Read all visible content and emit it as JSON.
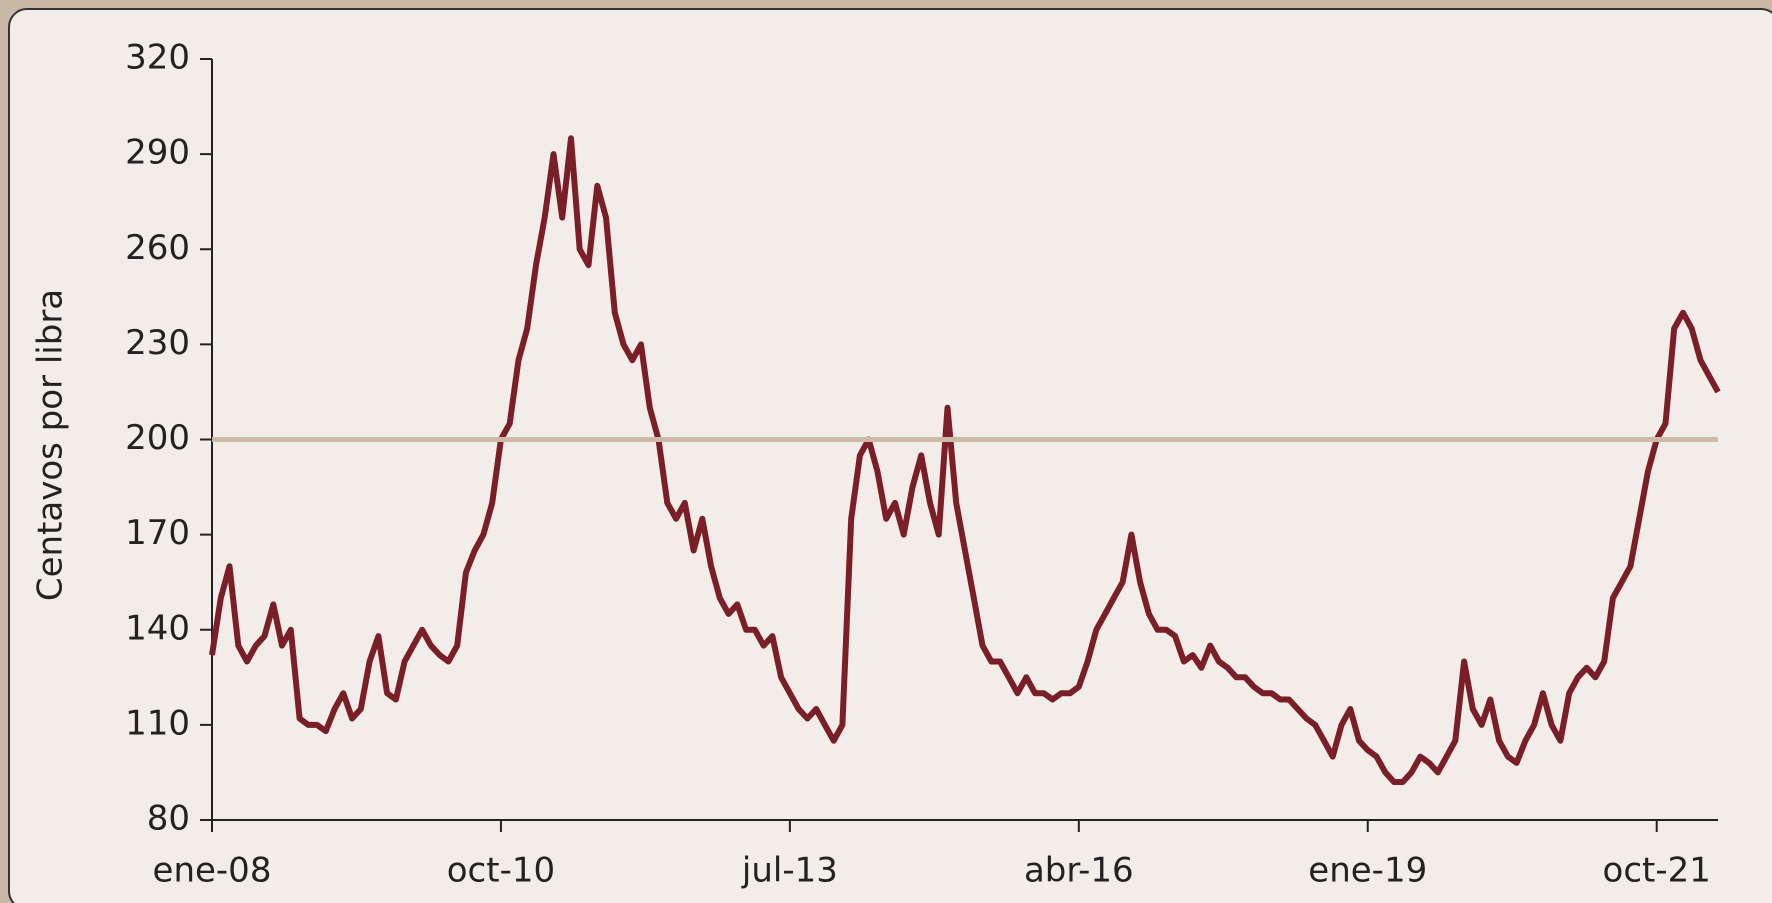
{
  "chart_data": {
    "type": "line",
    "y_label": "Centavos por libra",
    "x": [
      "2008-01",
      "2008-02",
      "2008-03",
      "2008-04",
      "2008-05",
      "2008-06",
      "2008-07",
      "2008-08",
      "2008-09",
      "2008-10",
      "2008-11",
      "2008-12",
      "2009-01",
      "2009-02",
      "2009-03",
      "2009-04",
      "2009-05",
      "2009-06",
      "2009-07",
      "2009-08",
      "2009-09",
      "2009-10",
      "2009-11",
      "2009-12",
      "2010-01",
      "2010-02",
      "2010-03",
      "2010-04",
      "2010-05",
      "2010-06",
      "2010-07",
      "2010-08",
      "2010-09",
      "2010-10",
      "2010-11",
      "2010-12",
      "2011-01",
      "2011-02",
      "2011-03",
      "2011-04",
      "2011-05",
      "2011-06",
      "2011-07",
      "2011-08",
      "2011-09",
      "2011-10",
      "2011-11",
      "2011-12",
      "2012-01",
      "2012-02",
      "2012-03",
      "2012-04",
      "2012-05",
      "2012-06",
      "2012-07",
      "2012-08",
      "2012-09",
      "2012-10",
      "2012-11",
      "2012-12",
      "2013-01",
      "2013-02",
      "2013-03",
      "2013-04",
      "2013-05",
      "2013-06",
      "2013-07",
      "2013-08",
      "2013-09",
      "2013-10",
      "2013-11",
      "2013-12",
      "2014-01",
      "2014-02",
      "2014-03",
      "2014-04",
      "2014-05",
      "2014-06",
      "2014-07",
      "2014-08",
      "2014-09",
      "2014-10",
      "2014-11",
      "2014-12",
      "2015-01",
      "2015-02",
      "2015-03",
      "2015-04",
      "2015-05",
      "2015-06",
      "2015-07",
      "2015-08",
      "2015-09",
      "2015-10",
      "2015-11",
      "2015-12",
      "2016-01",
      "2016-02",
      "2016-03",
      "2016-04",
      "2016-05",
      "2016-06",
      "2016-07",
      "2016-08",
      "2016-09",
      "2016-10",
      "2016-11",
      "2016-12",
      "2017-01",
      "2017-02",
      "2017-03",
      "2017-04",
      "2017-05",
      "2017-06",
      "2017-07",
      "2017-08",
      "2017-09",
      "2017-10",
      "2017-11",
      "2017-12",
      "2018-01",
      "2018-02",
      "2018-03",
      "2018-04",
      "2018-05",
      "2018-06",
      "2018-07",
      "2018-08",
      "2018-09",
      "2018-10",
      "2018-11",
      "2018-12",
      "2019-01",
      "2019-02",
      "2019-03",
      "2019-04",
      "2019-05",
      "2019-06",
      "2019-07",
      "2019-08",
      "2019-09",
      "2019-10",
      "2019-11",
      "2019-12",
      "2020-01",
      "2020-02",
      "2020-03",
      "2020-04",
      "2020-05",
      "2020-06",
      "2020-07",
      "2020-08",
      "2020-09",
      "2020-10",
      "2020-11",
      "2020-12",
      "2021-01",
      "2021-02",
      "2021-03",
      "2021-04",
      "2021-05",
      "2021-06",
      "2021-07",
      "2021-08",
      "2021-09",
      "2021-10",
      "2021-11",
      "2021-12",
      "2022-01",
      "2022-02",
      "2022-03",
      "2022-04",
      "2022-05"
    ],
    "series": [
      {
        "color": "#7a1f27",
        "values": [
          132,
          150,
          160,
          135,
          130,
          135,
          138,
          148,
          135,
          140,
          112,
          110,
          110,
          108,
          115,
          120,
          112,
          115,
          130,
          138,
          120,
          118,
          130,
          135,
          140,
          135,
          132,
          130,
          135,
          158,
          165,
          170,
          180,
          200,
          205,
          225,
          235,
          255,
          270,
          290,
          270,
          295,
          260,
          255,
          280,
          270,
          240,
          230,
          225,
          230,
          210,
          200,
          180,
          175,
          180,
          165,
          175,
          160,
          150,
          145,
          148,
          140,
          140,
          135,
          138,
          125,
          120,
          115,
          112,
          115,
          110,
          105,
          110,
          175,
          195,
          200,
          190,
          175,
          180,
          170,
          185,
          195,
          180,
          170,
          210,
          180,
          165,
          150,
          135,
          130,
          130,
          125,
          120,
          125,
          120,
          120,
          118,
          120,
          120,
          122,
          130,
          140,
          145,
          150,
          155,
          170,
          155,
          145,
          140,
          140,
          138,
          130,
          132,
          128,
          135,
          130,
          128,
          125,
          125,
          122,
          120,
          120,
          118,
          118,
          115,
          112,
          110,
          105,
          100,
          110,
          115,
          105,
          102,
          100,
          95,
          92,
          92,
          95,
          100,
          98,
          95,
          100,
          105,
          130,
          115,
          110,
          118,
          105,
          100,
          98,
          105,
          110,
          120,
          110,
          105,
          120,
          125,
          128,
          125,
          130,
          150,
          155,
          160,
          175,
          190,
          200,
          205,
          235,
          240,
          235,
          225,
          220,
          215
        ]
      }
    ],
    "reference_line": {
      "value": 200,
      "color": "#cdb9a8"
    },
    "ylim": [
      80,
      320
    ],
    "yticks": [
      80,
      110,
      140,
      170,
      200,
      230,
      260,
      290,
      320
    ],
    "xticks": [
      {
        "value": "2008-01",
        "label": "ene-08"
      },
      {
        "value": "2010-10",
        "label": "oct-10"
      },
      {
        "value": "2013-07",
        "label": "jul-13"
      },
      {
        "value": "2016-04",
        "label": "abr-16"
      },
      {
        "value": "2019-01",
        "label": "ene-19"
      },
      {
        "value": "2021-10",
        "label": "oct-21"
      }
    ]
  }
}
